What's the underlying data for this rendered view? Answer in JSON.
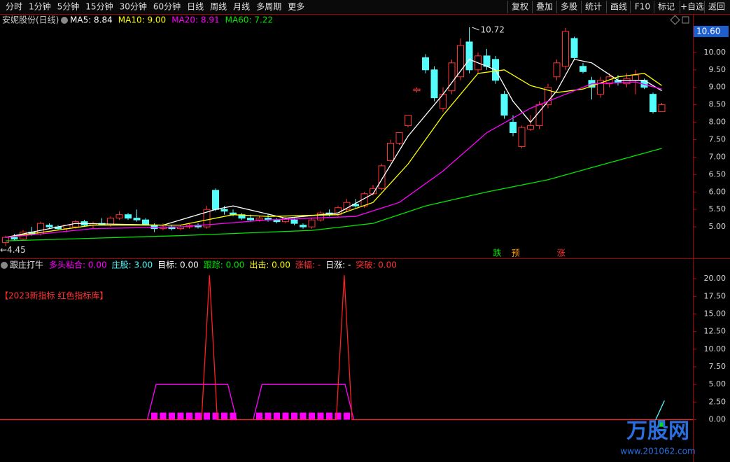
{
  "toolbar": {
    "tabs": [
      "分时",
      "1分钟",
      "5分钟",
      "15分钟",
      "30分钟",
      "60分钟",
      "日线",
      "周线",
      "月线",
      "多周期",
      "更多"
    ],
    "buttons": [
      "复权",
      "叠加",
      "多股",
      "统计",
      "画线",
      "F10",
      "标记",
      "+自选",
      "返回"
    ]
  },
  "watermark": {
    "title": "万股网",
    "url": "www.201062.com"
  },
  "chart_data": [
    {
      "type": "candlestick",
      "title": "安妮股份(日线)",
      "xlim": [
        -0.64,
        78.56
      ],
      "ylim": [
        4.12,
        10.9
      ],
      "yticks": [
        {
          "value": 5,
          "label": "5.00"
        },
        {
          "value": 5.5,
          "label": "5.50"
        },
        {
          "value": 6,
          "label": "6.00"
        },
        {
          "value": 6.5,
          "label": "6.50"
        },
        {
          "value": 7,
          "label": "7.00"
        },
        {
          "value": 7.5,
          "label": "7.50"
        },
        {
          "value": 8,
          "label": "8.00"
        },
        {
          "value": 8.5,
          "label": "8.50"
        },
        {
          "value": 9,
          "label": "9.00"
        },
        {
          "value": 9.5,
          "label": "9.50"
        },
        {
          "value": 10,
          "label": "10.00"
        }
      ],
      "grid": false,
      "up_color": "#ff3232",
      "down_color": "#54fcfc",
      "open": [
        4.55,
        4.7,
        4.65,
        4.85,
        4.8,
        5.05,
        5.0,
        4.95,
        5.0,
        5.15,
        5.05,
        5.1,
        5.05,
        5.25,
        5.35,
        5.25,
        5.2,
        5.05,
        4.95,
        5.0,
        4.95,
        5.0,
        5.05,
        5.0,
        6.05,
        5.5,
        5.4,
        5.35,
        5.25,
        5.2,
        5.25,
        5.2,
        5.15,
        5.2,
        5.05,
        5.0,
        5.2,
        5.4,
        5.35,
        5.5,
        5.65,
        5.6,
        5.95,
        6.1,
        6.9,
        7.4,
        7.9,
        8.9,
        9.85,
        9.5,
        8.4,
        8.9,
        9.3,
        10.3,
        9.5,
        9.9,
        9.8,
        8.8,
        8.0,
        7.3,
        7.8,
        7.9,
        8.5,
        9.3,
        9.6,
        10.4,
        9.6,
        9.2,
        8.8,
        9.1,
        9.2,
        9.1,
        9.2,
        9.2,
        8.8,
        8.3
      ],
      "high": [
        4.75,
        4.8,
        4.9,
        5.0,
        5.15,
        5.1,
        5.05,
        5.05,
        5.2,
        5.2,
        5.15,
        5.25,
        5.3,
        5.45,
        5.4,
        5.5,
        5.25,
        5.1,
        5.1,
        5.05,
        5.05,
        5.1,
        5.1,
        5.6,
        6.1,
        5.6,
        5.5,
        5.4,
        5.35,
        5.3,
        5.35,
        5.25,
        5.3,
        5.25,
        5.1,
        5.25,
        5.45,
        5.5,
        5.6,
        5.8,
        5.8,
        6.0,
        6.2,
        6.8,
        7.5,
        7.7,
        8.2,
        9.0,
        9.95,
        9.6,
        9.0,
        9.8,
        10.4,
        10.72,
        10.0,
        10.1,
        9.9,
        8.9,
        8.2,
        7.9,
        8.2,
        8.6,
        9.1,
        9.8,
        10.7,
        10.45,
        9.7,
        9.3,
        9.3,
        9.4,
        9.35,
        9.4,
        9.5,
        9.25,
        8.85,
        8.55
      ],
      "low": [
        4.45,
        4.6,
        4.6,
        4.75,
        4.75,
        4.95,
        4.9,
        4.85,
        4.95,
        5.0,
        4.95,
        5.05,
        5.0,
        5.2,
        5.2,
        5.15,
        5.05,
        4.85,
        4.9,
        4.9,
        4.9,
        4.95,
        4.95,
        4.95,
        5.45,
        5.35,
        5.3,
        5.2,
        5.15,
        5.15,
        5.15,
        5.1,
        5.1,
        5.05,
        4.95,
        4.95,
        5.15,
        5.3,
        5.3,
        5.45,
        5.55,
        5.55,
        5.9,
        6.05,
        6.85,
        7.35,
        7.85,
        8.85,
        9.4,
        8.6,
        8.3,
        8.8,
        9.2,
        9.4,
        9.4,
        9.5,
        9.1,
        8.1,
        7.6,
        7.25,
        7.75,
        7.8,
        8.4,
        9.2,
        9.5,
        9.8,
        9.4,
        8.65,
        8.7,
        9.0,
        9.05,
        9.0,
        8.8,
        8.95,
        8.25,
        8.3
      ],
      "close": [
        4.7,
        4.65,
        4.85,
        4.8,
        5.1,
        5.0,
        4.95,
        5.05,
        5.15,
        5.05,
        5.1,
        5.05,
        5.25,
        5.35,
        5.25,
        5.2,
        5.05,
        4.95,
        5.0,
        4.95,
        5.0,
        5.05,
        5.0,
        5.5,
        5.5,
        5.45,
        5.35,
        5.25,
        5.2,
        5.25,
        5.2,
        5.15,
        5.25,
        5.1,
        5.0,
        5.2,
        5.4,
        5.35,
        5.55,
        5.7,
        5.6,
        5.95,
        6.1,
        6.75,
        7.4,
        7.7,
        8.2,
        8.95,
        9.5,
        8.7,
        8.8,
        9.7,
        10.2,
        9.5,
        9.9,
        9.6,
        9.2,
        8.2,
        7.7,
        7.85,
        7.9,
        8.5,
        9.0,
        9.7,
        10.6,
        9.85,
        9.45,
        9.0,
        9.2,
        9.3,
        9.15,
        9.25,
        9.35,
        9.0,
        8.3,
        8.5
      ],
      "series": [
        {
          "name": "MA5",
          "label": "MA5: 8.84",
          "color": "#ffffff",
          "x": [
            0,
            8,
            18,
            24,
            26,
            32,
            38,
            42,
            46,
            50,
            53,
            56,
            58,
            60,
            63,
            65,
            67,
            70,
            73,
            75
          ],
          "values": [
            4.7,
            5.1,
            5.05,
            5.5,
            5.6,
            5.25,
            5.4,
            5.95,
            7.6,
            8.8,
            9.8,
            9.5,
            8.6,
            8.0,
            8.9,
            9.8,
            9.7,
            9.2,
            9.2,
            8.9
          ]
        },
        {
          "name": "MA10",
          "label": "MA10: 9.00",
          "color": "#ffff00",
          "x": [
            0,
            10,
            20,
            26,
            30,
            38,
            42,
            46,
            50,
            54,
            57,
            60,
            63,
            66,
            70,
            73,
            75
          ],
          "values": [
            4.7,
            5.05,
            5.05,
            5.35,
            5.3,
            5.35,
            5.7,
            6.8,
            8.2,
            9.4,
            9.5,
            9.05,
            8.85,
            8.95,
            9.3,
            9.4,
            9.05
          ]
        },
        {
          "name": "MA20",
          "label": "MA20: 8.91",
          "color": "#ff00ff",
          "x": [
            0,
            10,
            20,
            30,
            40,
            45,
            50,
            55,
            60,
            64,
            67,
            72,
            75
          ],
          "values": [
            4.7,
            4.95,
            5.0,
            5.2,
            5.3,
            5.7,
            6.6,
            7.7,
            8.4,
            8.8,
            9.1,
            9.15,
            8.95
          ]
        },
        {
          "name": "MA60",
          "label": "MA60: 7.22",
          "color": "#00e600",
          "x": [
            0,
            20,
            35,
            42,
            48,
            55,
            62,
            67,
            75
          ],
          "values": [
            4.6,
            4.75,
            4.9,
            5.1,
            5.6,
            6.0,
            6.35,
            6.7,
            7.25
          ]
        }
      ],
      "max_label": "10.72",
      "min_label": "←4.45",
      "cursor_price": {
        "value": 10.6,
        "label": "10.60"
      },
      "signals": [
        {
          "label": "跌",
          "color": "#00e600",
          "x": 56.2
        },
        {
          "label": "预",
          "color": "#ff9900",
          "x": 58.3
        },
        {
          "label": "涨",
          "color": "#ff3232",
          "x": 63.5
        }
      ]
    },
    {
      "type": "line",
      "title": "跟庄打牛",
      "note": "【2023新指标 红色指标库】",
      "header_labels": [
        {
          "text": "多头粘合: 0.00",
          "color": "#ff00ff"
        },
        {
          "text": "庄股: 3.00",
          "color": "#54fcfc"
        },
        {
          "text": "目标: 0.00",
          "color": "#ffffff"
        },
        {
          "text": "跟踪: 0.00",
          "color": "#00e600"
        },
        {
          "text": "出击: 0.00",
          "color": "#ffff00"
        },
        {
          "text": "涨幅: -",
          "color": "#ff3232"
        },
        {
          "text": "日涨: -",
          "color": "#ffffff"
        },
        {
          "text": "突破: 0.00",
          "color": "#ff3232"
        }
      ],
      "xlim": [
        -0.64,
        78.56
      ],
      "ylim": [
        -6,
        21.8
      ],
      "yticks": [
        {
          "value": 0,
          "label": "0.00"
        },
        {
          "value": 2.5,
          "label": "2.50"
        },
        {
          "value": 5,
          "label": "5.00"
        },
        {
          "value": 7.5,
          "label": "7.50"
        },
        {
          "value": 10,
          "label": "10.00"
        },
        {
          "value": 12.5,
          "label": "12.50"
        },
        {
          "value": 15,
          "label": "15.00"
        },
        {
          "value": 17.5,
          "label": "17.50"
        },
        {
          "value": 20,
          "label": "20.00"
        }
      ],
      "series": [
        {
          "color": "#ff00ff",
          "x": [
            16.2,
            17.2,
            25.4,
            26.4,
            null,
            28.3,
            29.3,
            38.8,
            39.8
          ],
          "values": [
            0,
            5,
            5,
            0,
            null,
            0,
            5,
            5,
            0
          ]
        },
        {
          "color": "#ff2020",
          "x": [
            -0.64,
            22.4,
            23.3,
            24.2,
            37.8,
            38.7,
            39.6,
            78.56
          ],
          "values": [
            0,
            0,
            20.5,
            0,
            0,
            20.5,
            0,
            0
          ]
        },
        {
          "color": "#54fcfc",
          "x": [
            74.3,
            75.3
          ],
          "values": [
            0,
            2.7
          ]
        }
      ],
      "bars": [
        {
          "color": "#ff00ff",
          "x": [
            17,
            18,
            19,
            20,
            21,
            22,
            23,
            24,
            25,
            26,
            29,
            30,
            31,
            32,
            33,
            34,
            35,
            36,
            37,
            38,
            39
          ],
          "values": [
            1,
            1,
            1,
            1,
            1,
            1,
            1,
            1,
            1,
            1,
            1,
            1,
            1,
            1,
            1,
            1,
            1,
            1,
            1,
            1,
            1
          ]
        },
        {
          "color": "#00e600",
          "x": [
            75
          ],
          "values": [
            -1
          ]
        }
      ]
    }
  ]
}
